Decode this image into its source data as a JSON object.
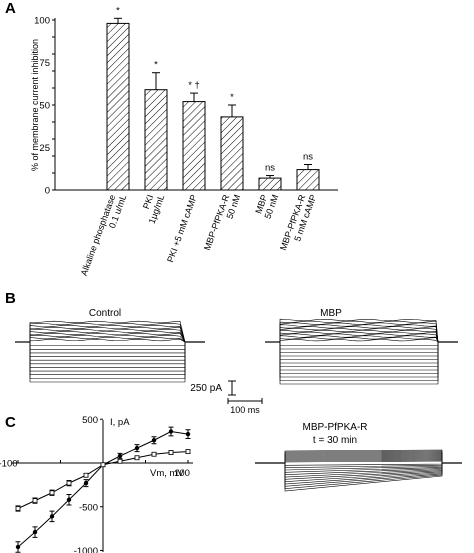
{
  "panels": {
    "a": "A",
    "b": "B",
    "c": "C"
  },
  "chart_data": [
    {
      "type": "bar",
      "panel": "A",
      "ylabel": "% of membrane current inhibition",
      "ylim": [
        0,
        100
      ],
      "yticks": [
        "0",
        "10",
        "20",
        "30",
        "40",
        "50",
        "60",
        "70",
        "80",
        "90",
        "100"
      ],
      "yticks_labeled": [
        "0",
        "25",
        "50",
        "75",
        "100"
      ],
      "categories": [
        {
          "l1": "Alkaline phosphatase",
          "l2": "0.1 u/mL",
          "l3": ""
        },
        {
          "l1": "PKI",
          "l2": "1μg/mL",
          "l3": ""
        },
        {
          "l1": "PKI +5 mM cAMP",
          "l2": "",
          "l3": ""
        },
        {
          "l1": "MBP-PfPKA-R",
          "l2": "50 nM",
          "l3": ""
        },
        {
          "l1": "MBP",
          "l2": "50 nM",
          "l3": ""
        },
        {
          "l1": "MBP-PfPKA-R",
          "l2": "5 mM cAMP",
          "l3": ""
        }
      ],
      "values": [
        98,
        59,
        52,
        43,
        7,
        12
      ],
      "errors": [
        3,
        10,
        5,
        7,
        1.5,
        3
      ],
      "annotations": [
        "*",
        "*",
        "* †",
        "*",
        "ns",
        "ns"
      ],
      "grid": false
    },
    {
      "type": "line",
      "panel": "C",
      "xlabel": "Vm, mV",
      "ylabel": "I, pA",
      "xlim": [
        -100,
        100
      ],
      "ylim": [
        -1000,
        500
      ],
      "xticks": [
        "-100",
        "100"
      ],
      "yticks": [
        "500",
        "-500",
        "-1000"
      ],
      "x": [
        -100,
        -80,
        -60,
        -40,
        -20,
        0,
        20,
        40,
        60,
        80,
        100
      ],
      "series": [
        {
          "values": [
            -960,
            -790,
            -610,
            -420,
            -230,
            -20,
            80,
            170,
            260,
            360,
            330
          ],
          "errors": [
            60,
            60,
            60,
            60,
            40,
            20,
            30,
            40,
            40,
            50,
            50
          ]
        },
        {
          "values": [
            -520,
            -430,
            -340,
            -230,
            -140,
            -20,
            20,
            60,
            100,
            120,
            130
          ],
          "errors": [
            30,
            30,
            30,
            30,
            20,
            20,
            20,
            20,
            20,
            20,
            20
          ]
        }
      ]
    }
  ],
  "traces": {
    "control_label": "Control",
    "mbp_label": "MBP",
    "pfpka_label_1": "MBP-PfPKA-R",
    "pfpka_label_2": "t = 30 min",
    "scale_current": "250 pA",
    "scale_time": "100 ms"
  }
}
